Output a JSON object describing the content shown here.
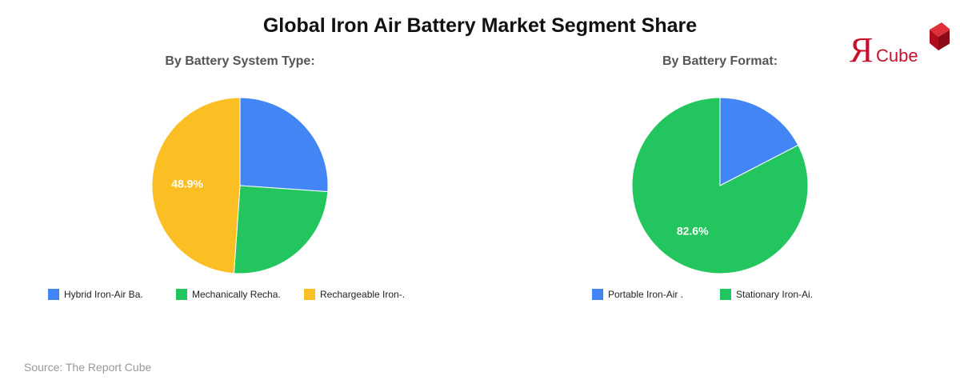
{
  "page": {
    "title": "Global Iron Air Battery Market Segment Share",
    "source": "Source: The Report Cube"
  },
  "logo": {
    "text_r": "Я",
    "text_cube": "Cube",
    "color": "#c8102e"
  },
  "colors": {
    "blue": "#4285f4",
    "green": "#22c55e",
    "yellow": "#fbbf24"
  },
  "chart_data": [
    {
      "type": "pie",
      "title": "By Battery System Type:",
      "categories": [
        "Hybrid Iron-Air Ba.",
        "Mechanically Recha.",
        "Rechargeable Iron-."
      ],
      "values": [
        26.1,
        25.0,
        48.9
      ],
      "colors": [
        "#4285f4",
        "#22c55e",
        "#fbbf24"
      ],
      "data_labels": [
        "",
        "",
        "48.9%"
      ],
      "legend_position": "bottom"
    },
    {
      "type": "pie",
      "title": "By Battery Format:",
      "categories": [
        "Portable Iron-Air .",
        "Stationary Iron-Ai."
      ],
      "values": [
        17.4,
        82.6
      ],
      "colors": [
        "#4285f4",
        "#22c55e"
      ],
      "data_labels": [
        "",
        "82.6%"
      ],
      "legend_position": "bottom"
    }
  ]
}
